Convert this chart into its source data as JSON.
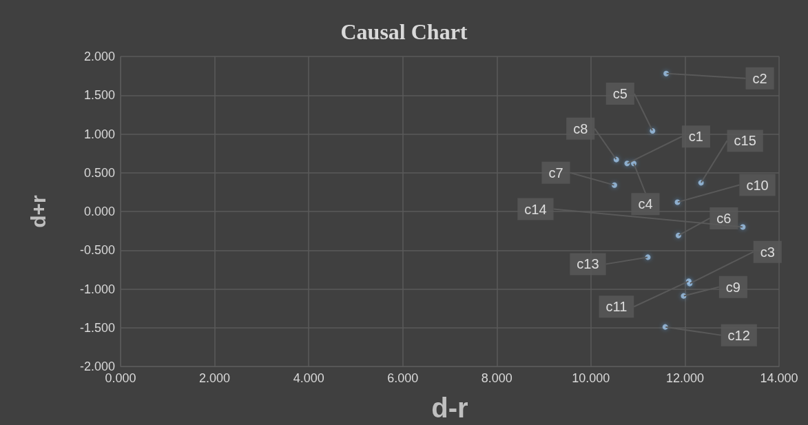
{
  "chart_data": {
    "type": "scatter",
    "title": "Causal Chart",
    "xlabel": "d-r",
    "ylabel": "d+r",
    "x": [
      10.77,
      11.6,
      12.1,
      10.91,
      11.31,
      11.86,
      10.5,
      10.54,
      11.97,
      11.84,
      12.08,
      11.58,
      11.21,
      13.23,
      12.34
    ],
    "values": [
      0.62,
      1.78,
      -0.93,
      0.62,
      1.04,
      -0.31,
      0.34,
      0.67,
      -1.09,
      0.12,
      -0.9,
      -1.49,
      -0.59,
      -0.2,
      0.37
    ],
    "color": "#9dc3e6",
    "marker": "circle",
    "grid": true,
    "xlim": [
      0,
      14
    ],
    "xticks": [
      {
        "value": 0,
        "label": "0.000"
      },
      {
        "value": 2,
        "label": "2.000"
      },
      {
        "value": 4,
        "label": "4.000"
      },
      {
        "value": 6,
        "label": "6.000"
      },
      {
        "value": 8,
        "label": "8.000"
      },
      {
        "value": 10,
        "label": "10.000"
      },
      {
        "value": 12,
        "label": "12.000"
      },
      {
        "value": 14,
        "label": "14.000"
      }
    ],
    "ylim": [
      -2,
      2
    ],
    "yticks": [
      {
        "value": -2,
        "label": "-2.000"
      },
      {
        "value": -1.5,
        "label": "-1.500"
      },
      {
        "value": -1,
        "label": "-1.000"
      },
      {
        "value": -0.5,
        "label": "-0.500"
      },
      {
        "value": 0,
        "label": "0.000"
      },
      {
        "value": 0.5,
        "label": "0.500"
      },
      {
        "value": 1,
        "label": "1.000"
      },
      {
        "value": 1.5,
        "label": "1.500"
      },
      {
        "value": 2,
        "label": "2.000"
      }
    ],
    "annotations": [
      {
        "text": "c1",
        "x": 10.77,
        "y": 0.62
      },
      {
        "text": "c2",
        "x": 11.6,
        "y": 1.78
      },
      {
        "text": "c3",
        "x": 12.1,
        "y": -0.93
      },
      {
        "text": "c4",
        "x": 10.91,
        "y": 0.62
      },
      {
        "text": "c5",
        "x": 11.31,
        "y": 1.04
      },
      {
        "text": "c6",
        "x": 11.86,
        "y": -0.31
      },
      {
        "text": "c7",
        "x": 10.5,
        "y": 0.34
      },
      {
        "text": "c8",
        "x": 10.54,
        "y": 0.67
      },
      {
        "text": "c9",
        "x": 11.97,
        "y": -1.09
      },
      {
        "text": "c10",
        "x": 11.84,
        "y": 0.12
      },
      {
        "text": "c11",
        "x": 12.08,
        "y": -0.9
      },
      {
        "text": "c12",
        "x": 11.58,
        "y": -1.49
      },
      {
        "text": "c13",
        "x": 11.21,
        "y": -0.59
      },
      {
        "text": "c14",
        "x": 13.23,
        "y": -0.2
      },
      {
        "text": "c15",
        "x": 12.34,
        "y": 0.37
      }
    ]
  }
}
